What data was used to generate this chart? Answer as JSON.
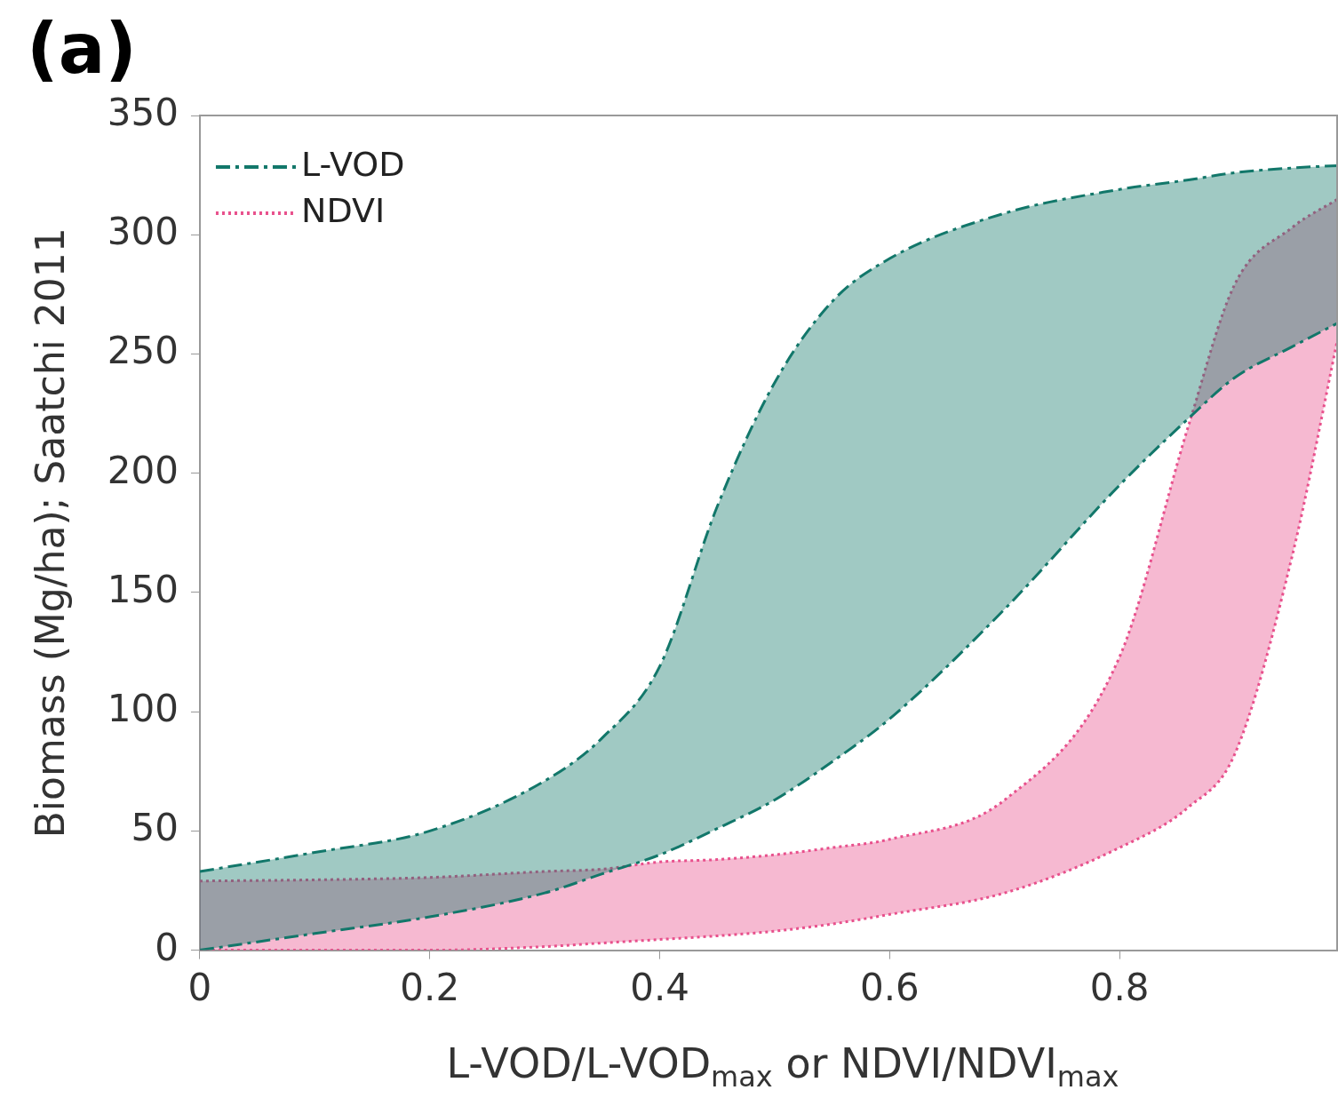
{
  "chart_data": {
    "type": "area",
    "annotations": [
      "(a)"
    ],
    "xlabel": "L-VOD/L-VOD$_{max}$ or NDVI/NDVI$_{max}$",
    "ylabel": "Biomass (Mg/ha); Saatchi 2011",
    "xlim": [
      0,
      0.99
    ],
    "xticks": [
      0,
      0.2,
      0.4,
      0.6,
      0.8
    ],
    "ylim": [
      0,
      350
    ],
    "yticks": [
      0,
      50,
      100,
      150,
      200,
      250,
      300,
      350
    ],
    "grid": false,
    "legend": "top left",
    "series": [
      {
        "type": "line",
        "color": "#12776a",
        "line_style": "dashdot",
        "x": [
          0,
          0.1,
          0.2,
          0.3,
          0.35,
          0.4,
          0.45,
          0.5,
          0.55,
          0.6,
          0.7,
          0.8,
          0.86,
          0.9,
          0.95,
          0.99
        ],
        "values": [
          0,
          7,
          14,
          24,
          32,
          40,
          51,
          63,
          79,
          97,
          143,
          195,
          223,
          240,
          253,
          263
        ]
      },
      {
        "name": "L-VOD",
        "type": "area",
        "color": "#12776a",
        "line_style": "dashdot",
        "x": [
          0,
          0.1,
          0.2,
          0.3,
          0.35,
          0.4,
          0.45,
          0.5,
          0.55,
          0.6,
          0.7,
          0.8,
          0.86,
          0.9,
          0.95,
          0.99
        ],
        "values": [
          33,
          41,
          50,
          71,
          89,
          119,
          186,
          238,
          272,
          290,
          309,
          319,
          323,
          326,
          328,
          329
        ]
      },
      {
        "type": "line",
        "color": "#e8508c",
        "line_style": "dotted",
        "x": [
          0,
          0.1,
          0.2,
          0.3,
          0.35,
          0.4,
          0.45,
          0.5,
          0.55,
          0.6,
          0.7,
          0.8,
          0.86,
          0.9,
          0.95,
          0.99
        ],
        "values": [
          0,
          0,
          0,
          1.5,
          3,
          4.5,
          6,
          8,
          11,
          15,
          24,
          43,
          60,
          82,
          165,
          257
        ]
      },
      {
        "name": "NDVI",
        "type": "area",
        "color": "#e8508c",
        "line_style": "dotted",
        "x": [
          0,
          0.1,
          0.2,
          0.3,
          0.35,
          0.4,
          0.45,
          0.5,
          0.55,
          0.6,
          0.7,
          0.8,
          0.86,
          0.9,
          0.95,
          0.99
        ],
        "values": [
          29,
          29.5,
          30.5,
          33,
          34,
          37,
          38,
          40,
          43,
          46.5,
          63,
          123,
          220,
          279,
          303,
          315
        ]
      }
    ]
  }
}
